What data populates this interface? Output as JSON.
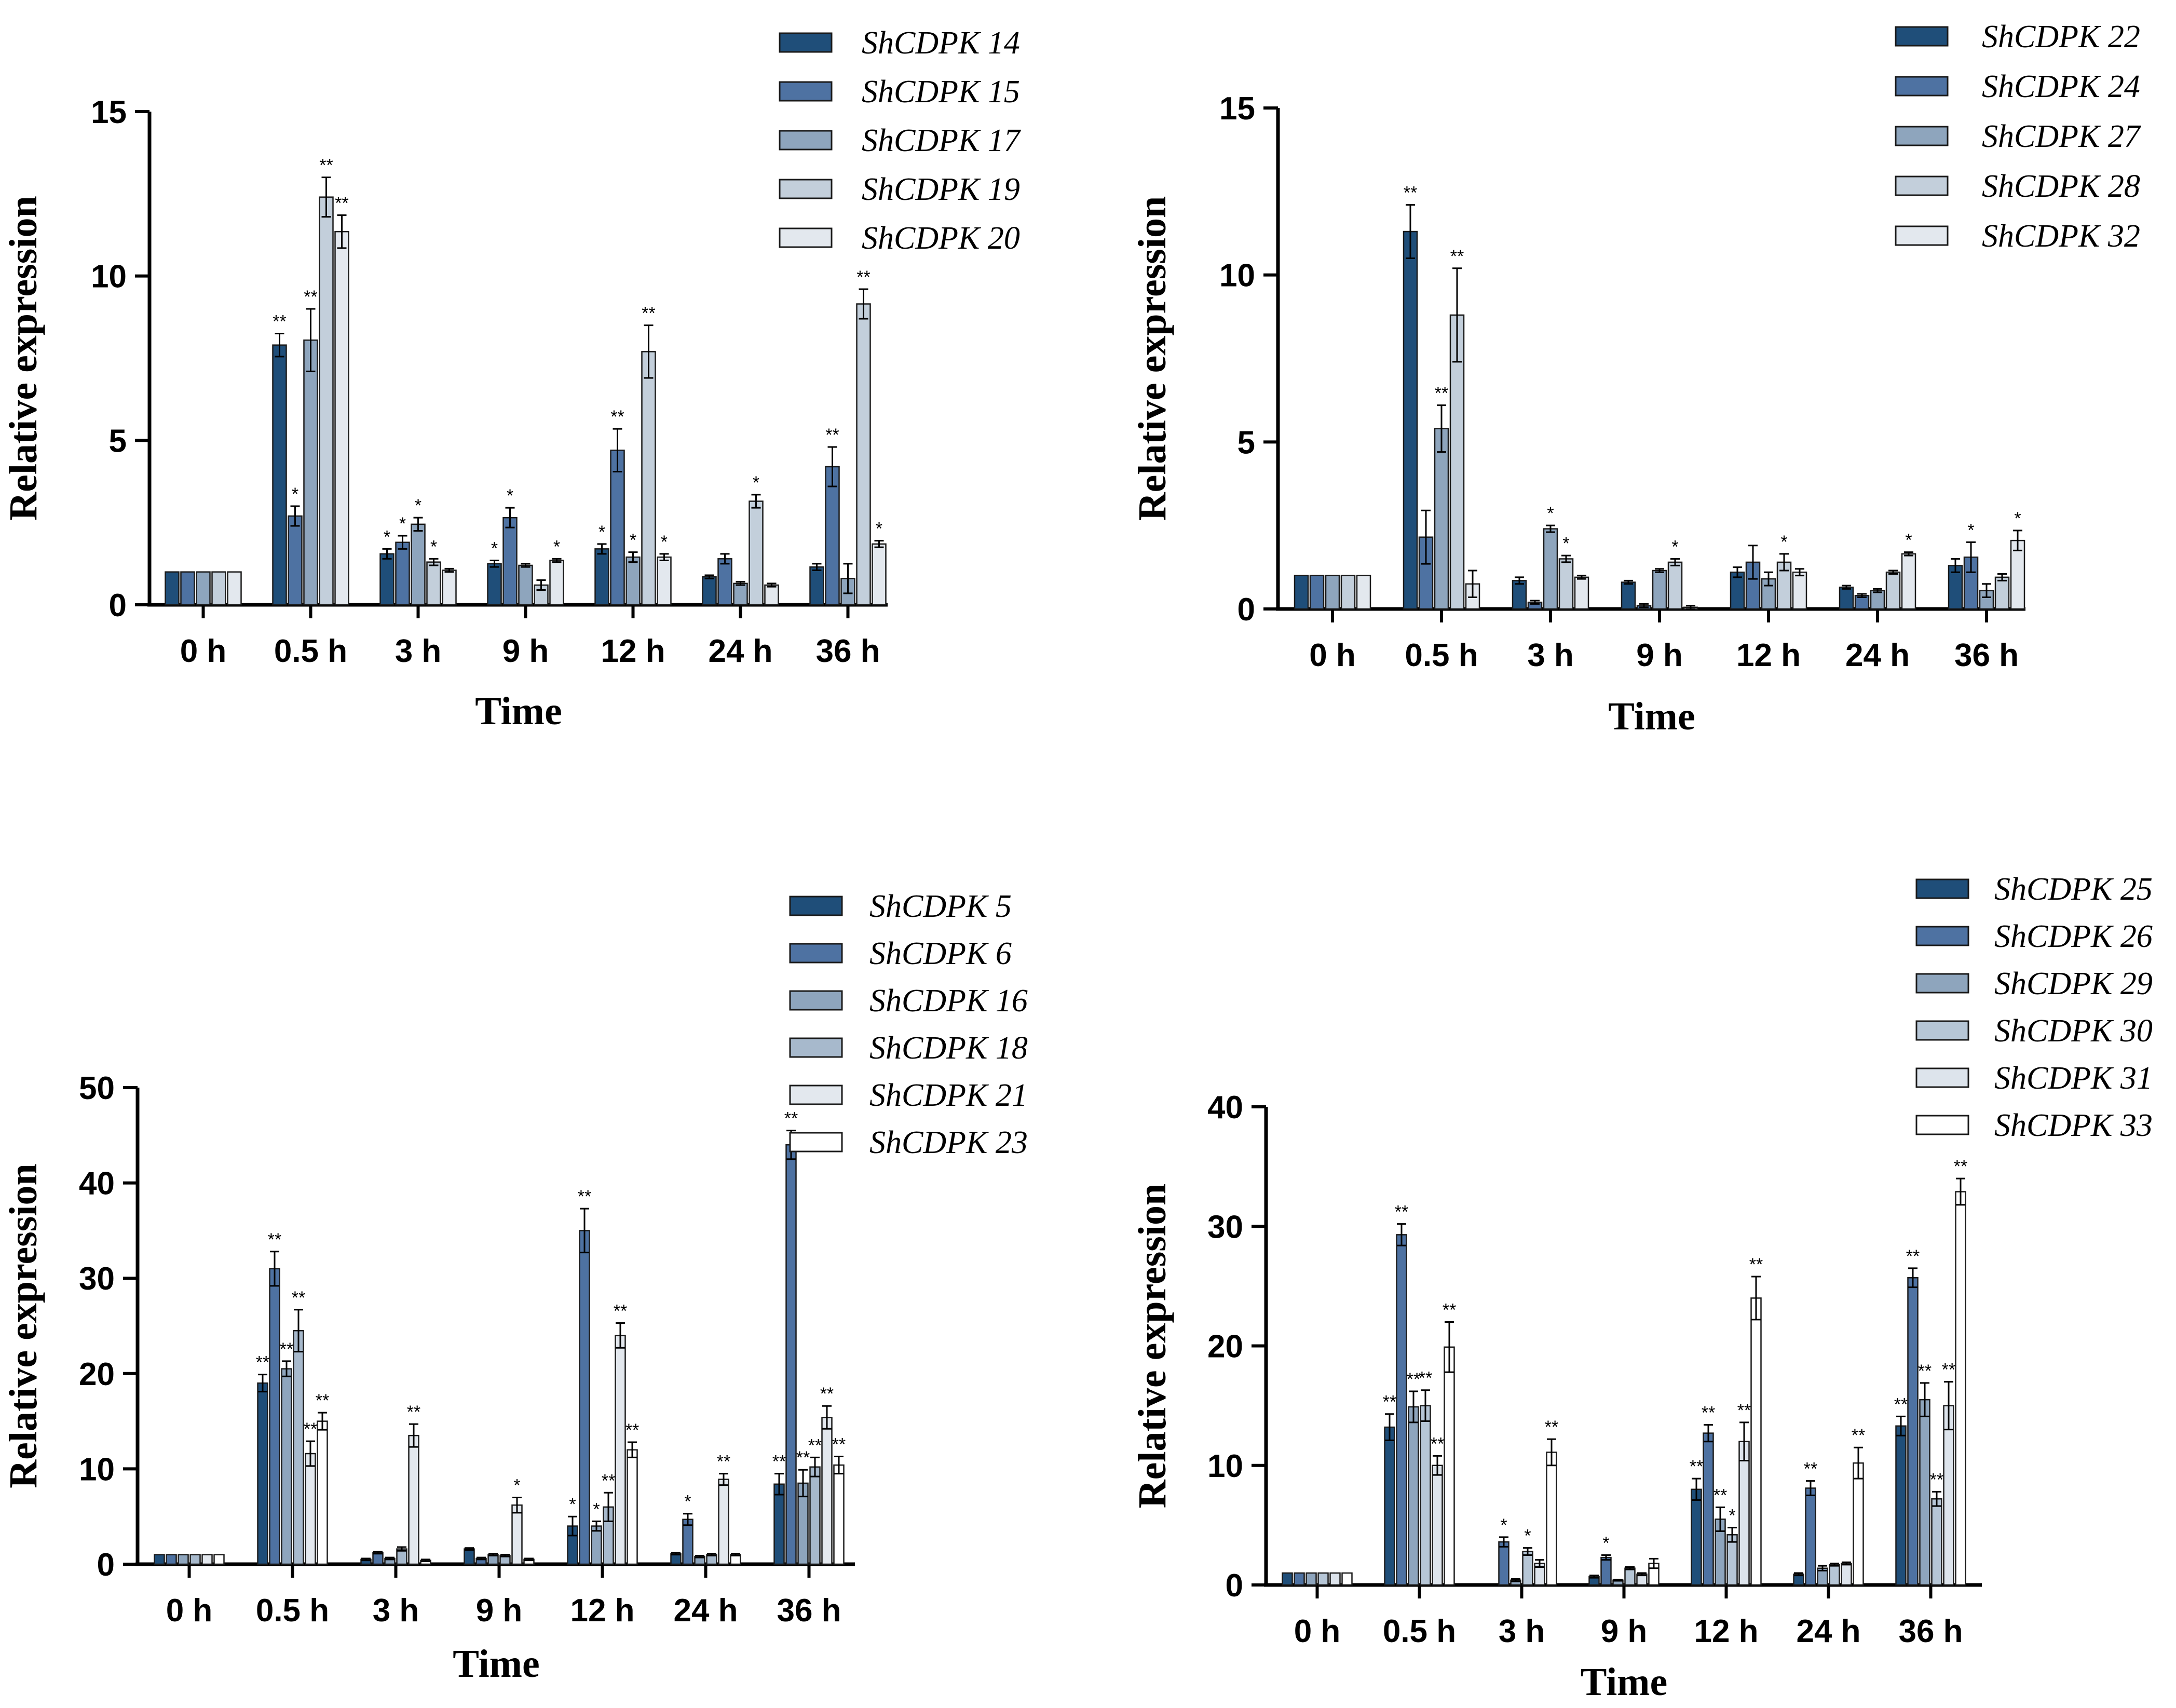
{
  "chart_data": [
    {
      "type": "bar",
      "title": "",
      "xlabel": "Time",
      "ylabel": "Relative expression",
      "categories": [
        "0 h",
        "0.5 h",
        "3 h",
        "9 h",
        "12 h",
        "24 h",
        "36 h"
      ],
      "ylim": [
        0,
        15
      ],
      "yticks": [
        "0",
        "5",
        "10",
        "15"
      ],
      "series": [
        {
          "name": "ShCDPK 14",
          "color": "#1f4e79",
          "values": [
            1,
            7.9,
            1.55,
            1.25,
            1.7,
            0.85,
            1.15
          ],
          "errors": [
            0,
            0.35,
            0.15,
            0.1,
            0.15,
            0.05,
            0.1
          ],
          "sig": [
            "",
            "**",
            "*",
            "*",
            "*",
            "",
            ""
          ]
        },
        {
          "name": "ShCDPK 15",
          "color": "#4e72a2",
          "values": [
            1,
            2.7,
            1.9,
            2.65,
            4.7,
            1.4,
            4.2
          ],
          "errors": [
            0,
            0.3,
            0.2,
            0.3,
            0.65,
            0.15,
            0.6
          ],
          "sig": [
            "",
            "*",
            "*",
            "*",
            "**",
            "",
            "**"
          ]
        },
        {
          "name": "ShCDPK 17",
          "color": "#8ea5bd",
          "values": [
            1,
            8.05,
            2.45,
            1.2,
            1.45,
            0.65,
            0.8
          ],
          "errors": [
            0,
            0.95,
            0.2,
            0.05,
            0.15,
            0.05,
            0.45
          ],
          "sig": [
            "",
            "**",
            "*",
            "",
            "*",
            "",
            ""
          ]
        },
        {
          "name": "ShCDPK 19",
          "color": "#c3cfdb",
          "values": [
            1,
            12.4,
            1.3,
            0.6,
            7.7,
            3.15,
            9.15
          ],
          "errors": [
            0,
            0.6,
            0.1,
            0.15,
            0.8,
            0.2,
            0.45
          ],
          "sig": [
            "",
            "**",
            "*",
            "",
            "**",
            "*",
            "**"
          ]
        },
        {
          "name": "ShCDPK 20",
          "color": "#e3e8ee",
          "values": [
            1,
            11.35,
            1.05,
            1.35,
            1.45,
            0.6,
            1.85
          ],
          "errors": [
            0,
            0.5,
            0.05,
            0.05,
            0.1,
            0.05,
            0.1
          ],
          "sig": [
            "",
            "**",
            "",
            "*",
            "*",
            "",
            "*"
          ]
        }
      ]
    },
    {
      "type": "bar",
      "title": "",
      "xlabel": "Time",
      "ylabel": "Relative expression",
      "categories": [
        "0 h",
        "0.5 h",
        "3 h",
        "9 h",
        "12 h",
        "24 h",
        "36 h"
      ],
      "ylim": [
        0,
        15
      ],
      "yticks": [
        "0",
        "5",
        "10",
        "15"
      ],
      "series": [
        {
          "name": "ShCDPK 22",
          "color": "#1f4e79",
          "values": [
            1,
            11.3,
            0.85,
            0.8,
            1.1,
            0.65,
            1.3
          ],
          "errors": [
            0,
            0.8,
            0.1,
            0.05,
            0.15,
            0.05,
            0.2
          ],
          "sig": [
            "",
            "**",
            "",
            "",
            "",
            "",
            ""
          ]
        },
        {
          "name": "ShCDPK 24",
          "color": "#4e72a2",
          "values": [
            1,
            2.15,
            0.2,
            0.1,
            1.4,
            0.4,
            1.55
          ],
          "errors": [
            0,
            0.8,
            0.05,
            0.05,
            0.5,
            0.05,
            0.45
          ],
          "sig": [
            "",
            "",
            "",
            "",
            "",
            "",
            "*"
          ]
        },
        {
          "name": "ShCDPK 27",
          "color": "#8ea5bd",
          "values": [
            1,
            5.4,
            2.4,
            1.15,
            0.9,
            0.55,
            0.55
          ],
          "errors": [
            0,
            0.7,
            0.1,
            0.05,
            0.2,
            0.05,
            0.2
          ],
          "sig": [
            "",
            "**",
            "*",
            "",
            "",
            "",
            ""
          ]
        },
        {
          "name": "ShCDPK 28",
          "color": "#c3cfdb",
          "values": [
            1,
            8.8,
            1.5,
            1.4,
            1.4,
            1.1,
            0.95
          ],
          "errors": [
            0,
            1.4,
            0.1,
            0.1,
            0.25,
            0.05,
            0.1
          ],
          "sig": [
            "",
            "**",
            "*",
            "*",
            "*",
            "",
            ""
          ]
        },
        {
          "name": "ShCDPK 32",
          "color": "#e3e8ee",
          "values": [
            1,
            0.75,
            0.95,
            0.05,
            1.1,
            1.65,
            2.05
          ],
          "errors": [
            0,
            0.4,
            0.05,
            0.05,
            0.1,
            0.05,
            0.3
          ],
          "sig": [
            "",
            "",
            "",
            "",
            "",
            "*",
            "*"
          ]
        }
      ]
    },
    {
      "type": "bar",
      "title": "",
      "xlabel": "Time",
      "ylabel": "Relative expression",
      "categories": [
        "0 h",
        "0.5 h",
        "3 h",
        "9 h",
        "12 h",
        "24 h",
        "36 h"
      ],
      "ylim": [
        0,
        50
      ],
      "yticks": [
        "0",
        "10",
        "20",
        "30",
        "40",
        "50"
      ],
      "series": [
        {
          "name": "ShCDPK 5",
          "color": "#1f4e79",
          "values": [
            1,
            19,
            0.5,
            1.6,
            4,
            1.1,
            8.4
          ],
          "errors": [
            0,
            0.9,
            0.1,
            0.1,
            1,
            0.1,
            1.1
          ],
          "sig": [
            "",
            "**",
            "",
            "",
            "*",
            "",
            "**"
          ]
        },
        {
          "name": "ShCDPK 6",
          "color": "#4e72a2",
          "values": [
            1,
            31,
            1.2,
            0.6,
            35,
            4.7,
            44
          ],
          "errors": [
            0,
            1.8,
            0.1,
            0.1,
            2.3,
            0.6,
            1.5
          ],
          "sig": [
            "",
            "**",
            "",
            "",
            "**",
            "*",
            "**"
          ]
        },
        {
          "name": "ShCDPK 16",
          "color": "#8ea5bd",
          "values": [
            1,
            20.5,
            0.6,
            1,
            4,
            0.8,
            8.5
          ],
          "errors": [
            0,
            0.8,
            0.1,
            0.1,
            0.5,
            0.1,
            1.4
          ],
          "sig": [
            "",
            "**",
            "",
            "",
            "*",
            "",
            "**"
          ]
        },
        {
          "name": "ShCDPK 18",
          "color": "#a7b9cc",
          "values": [
            1,
            24.5,
            1.6,
            0.9,
            6,
            1,
            10.2
          ],
          "errors": [
            0,
            2.2,
            0.2,
            0.1,
            1.5,
            0.1,
            1
          ],
          "sig": [
            "",
            "**",
            "",
            "",
            "**",
            "",
            "**"
          ]
        },
        {
          "name": "ShCDPK 21",
          "color": "#e3e8ee",
          "values": [
            1,
            11.6,
            13.5,
            6.2,
            24,
            8.9,
            15.4
          ],
          "errors": [
            0,
            1.3,
            1.2,
            0.8,
            1.3,
            0.6,
            1.2
          ],
          "sig": [
            "",
            "**",
            "**",
            "*",
            "**",
            "**",
            "**"
          ]
        },
        {
          "name": "ShCDPK 23",
          "color": "#ffffff",
          "values": [
            1,
            15,
            0.4,
            0.5,
            12,
            1,
            10.4
          ],
          "errors": [
            0,
            0.9,
            0.1,
            0.1,
            0.8,
            0.1,
            0.9
          ],
          "sig": [
            "",
            "**",
            "",
            "",
            "**",
            "",
            "**"
          ]
        }
      ]
    },
    {
      "type": "bar",
      "title": "",
      "xlabel": "Time",
      "ylabel": "Relative expression",
      "categories": [
        "0 h",
        "0.5 h",
        "3 h",
        "9 h",
        "12 h",
        "24 h",
        "36 h"
      ],
      "ylim": [
        0,
        40
      ],
      "yticks": [
        "0",
        "10",
        "20",
        "30",
        "40"
      ],
      "series": [
        {
          "name": "ShCDPK 25",
          "color": "#1f4e79",
          "values": [
            1,
            13.2,
            0,
            0.7,
            8,
            0.9,
            13.3
          ],
          "errors": [
            0,
            1.1,
            0,
            0.1,
            0.9,
            0.1,
            0.8
          ],
          "sig": [
            "",
            "**",
            "",
            "",
            "**",
            "",
            "**"
          ]
        },
        {
          "name": "ShCDPK 26",
          "color": "#4e72a2",
          "values": [
            1,
            29.3,
            3.6,
            2.3,
            12.7,
            8.1,
            25.7
          ],
          "errors": [
            0,
            0.9,
            0.4,
            0.2,
            0.7,
            0.6,
            0.8
          ],
          "sig": [
            "",
            "**",
            "*",
            "*",
            "**",
            "**",
            "**"
          ]
        },
        {
          "name": "ShCDPK 29",
          "color": "#8ea5bd",
          "values": [
            1,
            14.9,
            0.4,
            0.4,
            5.5,
            1.4,
            15.5
          ],
          "errors": [
            0,
            1.3,
            0.1,
            0.05,
            1,
            0.2,
            1.4
          ],
          "sig": [
            "",
            "**",
            "",
            "",
            "**",
            "",
            "**"
          ]
        },
        {
          "name": "ShCDPK 30",
          "color": "#b6c6d6",
          "values": [
            1,
            15,
            2.8,
            1.4,
            4.2,
            1.7,
            7.2
          ],
          "errors": [
            0,
            1.3,
            0.3,
            0.1,
            0.6,
            0.1,
            0.6
          ],
          "sig": [
            "",
            "**",
            "*",
            "",
            "*",
            "",
            "**"
          ]
        },
        {
          "name": "ShCDPK 31",
          "color": "#dde4ec",
          "values": [
            1,
            10,
            1.8,
            0.9,
            12,
            1.8,
            15
          ],
          "errors": [
            0,
            0.8,
            0.3,
            0.1,
            1.6,
            0.1,
            2
          ],
          "sig": [
            "",
            "**",
            "",
            "",
            "**",
            "",
            "**"
          ]
        },
        {
          "name": "ShCDPK 33",
          "color": "#ffffff",
          "values": [
            1,
            19.9,
            11.1,
            1.8,
            24,
            10.2,
            32.9
          ],
          "errors": [
            0,
            2.1,
            1.1,
            0.4,
            1.8,
            1.3,
            1.1
          ],
          "sig": [
            "",
            "**",
            "**",
            "",
            "**",
            "**",
            "**"
          ]
        }
      ]
    }
  ]
}
